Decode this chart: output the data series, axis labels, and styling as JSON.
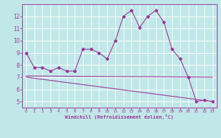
{
  "title": "",
  "xlabel": "Windchill (Refroidissement éolien,°C)",
  "xlim": [
    -0.5,
    23.5
  ],
  "ylim": [
    4.5,
    13.0
  ],
  "yticks": [
    5,
    6,
    7,
    8,
    9,
    10,
    11,
    12
  ],
  "xticks": [
    0,
    1,
    2,
    3,
    4,
    5,
    6,
    7,
    8,
    9,
    10,
    11,
    12,
    13,
    14,
    15,
    16,
    17,
    18,
    19,
    20,
    21,
    22,
    23
  ],
  "bg_color": "#c0e8e8",
  "grid_color": "#ffffff",
  "line_color": "#993399",
  "line1_x": [
    0,
    1,
    2,
    3,
    4,
    5,
    6,
    7,
    8,
    9,
    10,
    11,
    12,
    13,
    14,
    15,
    16,
    17,
    18,
    19,
    20,
    21,
    22,
    23
  ],
  "line1_y": [
    9.0,
    7.8,
    7.8,
    7.5,
    7.8,
    7.5,
    7.5,
    9.3,
    9.3,
    9.0,
    8.5,
    10.0,
    12.0,
    12.5,
    11.1,
    12.0,
    12.5,
    11.5,
    9.3,
    8.5,
    7.0,
    5.0,
    5.1,
    5.0
  ],
  "line2_x": [
    0,
    23
  ],
  "line2_y": [
    7.1,
    7.0
  ],
  "line3_x": [
    0,
    23
  ],
  "line3_y": [
    7.0,
    5.0
  ]
}
